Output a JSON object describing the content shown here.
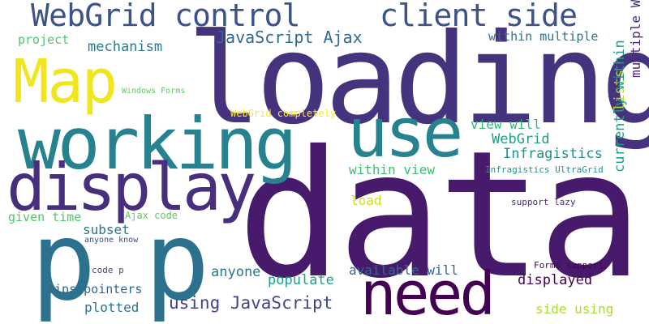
{
  "words": [
    {
      "id": "data",
      "text": "data",
      "color": "#481a6c"
    },
    {
      "id": "loading",
      "text": "loading",
      "color": "#46337e"
    },
    {
      "id": "p-1",
      "text": "p",
      "color": "#2c728e"
    },
    {
      "id": "p-2",
      "text": "p",
      "color": "#2c728e"
    },
    {
      "id": "working",
      "text": "working",
      "color": "#26828e"
    },
    {
      "id": "use",
      "text": "use",
      "color": "#26828e"
    },
    {
      "id": "display",
      "text": "display",
      "color": "#472f7d"
    },
    {
      "id": "map",
      "text": "Map",
      "color": "#f1e51d"
    },
    {
      "id": "need",
      "text": "need",
      "color": "#440154"
    },
    {
      "id": "webgrid-control",
      "text": "WebGrid control",
      "color": "#3b528b"
    },
    {
      "id": "client-side",
      "text": "client side",
      "color": "#3b528b"
    },
    {
      "id": "javascript-ajax",
      "text": "JavaScript Ajax",
      "color": "#31688e"
    },
    {
      "id": "mechanism",
      "text": "mechanism",
      "color": "#2a788e"
    },
    {
      "id": "project",
      "text": "project",
      "color": "#52c569"
    },
    {
      "id": "within-multiple",
      "text": "within multiple",
      "color": "#2c728e"
    },
    {
      "id": "multiple-webgrids",
      "text": "multiple WebGrids",
      "color": "#482878"
    },
    {
      "id": "windows-forms",
      "text": "Windows Forms",
      "color": "#5ec962"
    },
    {
      "id": "webgrid-completely",
      "text": "WebGrid completely",
      "color": "#fde725"
    },
    {
      "id": "view-will",
      "text": "view will",
      "color": "#35b779"
    },
    {
      "id": "webgrid",
      "text": "WebGrid",
      "color": "#1f9e89"
    },
    {
      "id": "lists",
      "text": "lists",
      "color": "#b5de2b"
    },
    {
      "id": "infragistics",
      "text": "Infragistics",
      "color": "#21918c"
    },
    {
      "id": "within-view",
      "text": "within view",
      "color": "#3dbc74"
    },
    {
      "id": "infragistics-ultragrid",
      "text": "Infragistics UltraGrid",
      "color": "#21918c"
    },
    {
      "id": "currently-within",
      "text": "currently within",
      "color": "#1f9e89"
    },
    {
      "id": "load",
      "text": "load",
      "color": "#cde11d"
    },
    {
      "id": "support-lazy",
      "text": "support lazy",
      "color": "#472c7a"
    },
    {
      "id": "given-time",
      "text": "given time",
      "color": "#54c568"
    },
    {
      "id": "ajax-code",
      "text": "Ajax code",
      "color": "#5ec962"
    },
    {
      "id": "anyone-know",
      "text": "anyone know",
      "color": "#3e4989"
    },
    {
      "id": "subset",
      "text": "subset",
      "color": "#2c728e"
    },
    {
      "id": "code-p",
      "text": "code p",
      "color": "#3e4989"
    },
    {
      "id": "anyone",
      "text": "anyone",
      "color": "#2a788e"
    },
    {
      "id": "available-will",
      "text": "available will",
      "color": "#31688e"
    },
    {
      "id": "forms-support",
      "text": "Forms support",
      "color": "#440154"
    },
    {
      "id": "populate",
      "text": "populate",
      "color": "#1fa187"
    },
    {
      "id": "displayed",
      "text": "displayed",
      "color": "#440154"
    },
    {
      "id": "tips-pointers",
      "text": "tips pointers",
      "color": "#31688e"
    },
    {
      "id": "plotted",
      "text": "plotted",
      "color": "#2c728e"
    },
    {
      "id": "using-javascript",
      "text": "using JavaScript",
      "color": "#414487"
    },
    {
      "id": "side-using",
      "text": "side using",
      "color": "#a8db34"
    }
  ]
}
